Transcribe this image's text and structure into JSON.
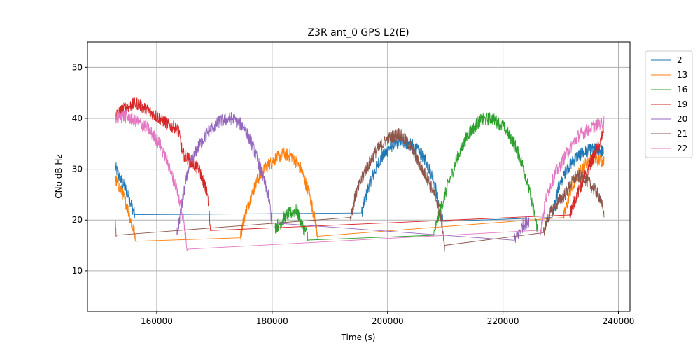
{
  "chart_data": {
    "type": "line",
    "title": "Z3R ant_0 GPS L2(E)",
    "xlabel": "Time (s)",
    "ylabel": "CNo dB Hz",
    "xlim": [
      148000,
      242000
    ],
    "ylim": [
      2,
      55
    ],
    "xticks": [
      160000,
      180000,
      200000,
      220000,
      240000
    ],
    "xtick_labels": [
      "160000",
      "180000",
      "200000",
      "220000",
      "240000"
    ],
    "yticks": [
      10,
      20,
      30,
      40,
      50
    ],
    "ytick_labels": [
      "10",
      "20",
      "30",
      "40",
      "50"
    ],
    "grid": true,
    "legend_position": "upper-right-outside",
    "series": [
      {
        "name": "2",
        "color": "#1f77b4",
        "points": [
          [
            152800,
            30.5
          ],
          [
            153500,
            28.5
          ],
          [
            154500,
            26.5
          ],
          [
            155500,
            23.5
          ],
          [
            156200,
            21
          ],
          [
            195500,
            21.4
          ],
          [
            196800,
            27
          ],
          [
            198500,
            31.5
          ],
          [
            200500,
            34.5
          ],
          [
            202500,
            35.5
          ],
          [
            204500,
            34.5
          ],
          [
            206500,
            32
          ],
          [
            208000,
            28
          ],
          [
            209200,
            21.5
          ],
          [
            209600,
            20
          ],
          [
            228500,
            20.5
          ],
          [
            229500,
            26
          ],
          [
            231000,
            30
          ],
          [
            232800,
            32.5
          ],
          [
            234500,
            33.5
          ],
          [
            236000,
            34
          ],
          [
            237500,
            33.5
          ]
        ]
      },
      {
        "name": "13",
        "color": "#ff7f0e",
        "points": [
          [
            152800,
            28
          ],
          [
            153800,
            26
          ],
          [
            154800,
            23
          ],
          [
            155700,
            19
          ],
          [
            156300,
            17
          ],
          [
            174500,
            16.5
          ],
          [
            175000,
            20
          ],
          [
            176000,
            23.5
          ],
          [
            177500,
            28
          ],
          [
            179000,
            30.5
          ],
          [
            180500,
            32
          ],
          [
            182000,
            33
          ],
          [
            183500,
            32.5
          ],
          [
            185000,
            30
          ],
          [
            186500,
            25
          ],
          [
            187500,
            19.5
          ],
          [
            188000,
            16.5
          ],
          [
            230500,
            20.5
          ],
          [
            231500,
            25
          ],
          [
            233000,
            29
          ],
          [
            234500,
            31.5
          ],
          [
            236000,
            32
          ],
          [
            237500,
            31.5
          ]
        ]
      },
      {
        "name": "16",
        "color": "#2ca02c",
        "points": [
          [
            180500,
            18.5
          ],
          [
            181500,
            19.5
          ],
          [
            182500,
            21
          ],
          [
            183500,
            21.5
          ],
          [
            184200,
            22
          ],
          [
            185200,
            19
          ],
          [
            186200,
            17
          ],
          [
            208000,
            17
          ],
          [
            209000,
            21.5
          ],
          [
            210500,
            27
          ],
          [
            212000,
            32
          ],
          [
            214000,
            37
          ],
          [
            216000,
            39.5
          ],
          [
            218000,
            40
          ],
          [
            220000,
            38.5
          ],
          [
            222000,
            35
          ],
          [
            223500,
            30.5
          ],
          [
            224500,
            26
          ],
          [
            225500,
            21
          ],
          [
            226000,
            18
          ]
        ]
      },
      {
        "name": "19",
        "color": "#d62728",
        "points": [
          [
            152800,
            40.5
          ],
          [
            154500,
            42
          ],
          [
            156500,
            43
          ],
          [
            158500,
            41.5
          ],
          [
            160500,
            40
          ],
          [
            162500,
            38.5
          ],
          [
            163800,
            37.5
          ],
          [
            164500,
            33
          ],
          [
            166000,
            31.5
          ],
          [
            167500,
            29.5
          ],
          [
            168800,
            25
          ],
          [
            169300,
            18.5
          ],
          [
            231500,
            21
          ],
          [
            232500,
            24
          ],
          [
            234000,
            28
          ],
          [
            235500,
            32
          ],
          [
            236800,
            35
          ],
          [
            237500,
            38
          ]
        ]
      },
      {
        "name": "20",
        "color": "#9467bd",
        "points": [
          [
            163500,
            17
          ],
          [
            164500,
            24
          ],
          [
            165500,
            30
          ],
          [
            167000,
            34
          ],
          [
            169000,
            37.5
          ],
          [
            171000,
            39.5
          ],
          [
            173000,
            40
          ],
          [
            175000,
            38.5
          ],
          [
            176500,
            35
          ],
          [
            178000,
            30
          ],
          [
            179500,
            24
          ],
          [
            180000,
            19
          ],
          [
            222000,
            16
          ],
          [
            223500,
            19
          ],
          [
            224500,
            20
          ]
        ]
      },
      {
        "name": "21",
        "color": "#8c564b",
        "points": [
          [
            152800,
            20
          ],
          [
            153000,
            17
          ],
          [
            193500,
            20.5
          ],
          [
            194500,
            25
          ],
          [
            196000,
            29.5
          ],
          [
            198000,
            33.5
          ],
          [
            200000,
            36
          ],
          [
            202000,
            37
          ],
          [
            204000,
            34.5
          ],
          [
            205500,
            31
          ],
          [
            207000,
            28
          ],
          [
            208500,
            24
          ],
          [
            209500,
            19
          ],
          [
            209900,
            14
          ],
          [
            227000,
            17.5
          ],
          [
            228000,
            21
          ],
          [
            229500,
            23.5
          ],
          [
            231000,
            25.5
          ],
          [
            232500,
            28.5
          ],
          [
            234000,
            28.5
          ],
          [
            235500,
            26.5
          ],
          [
            236800,
            24.5
          ],
          [
            237500,
            21
          ]
        ]
      },
      {
        "name": "22",
        "color": "#e377c2",
        "points": [
          [
            152800,
            40
          ],
          [
            154500,
            40.5
          ],
          [
            156500,
            39.5
          ],
          [
            158500,
            38
          ],
          [
            160500,
            35
          ],
          [
            162000,
            31
          ],
          [
            163500,
            26
          ],
          [
            164500,
            21
          ],
          [
            165000,
            17
          ],
          [
            165300,
            14.5
          ],
          [
            226500,
            18
          ],
          [
            227500,
            24.5
          ],
          [
            229000,
            29
          ],
          [
            231000,
            33
          ],
          [
            233000,
            36.5
          ],
          [
            235000,
            38
          ],
          [
            236800,
            39
          ],
          [
            237500,
            39.5
          ]
        ]
      }
    ]
  }
}
